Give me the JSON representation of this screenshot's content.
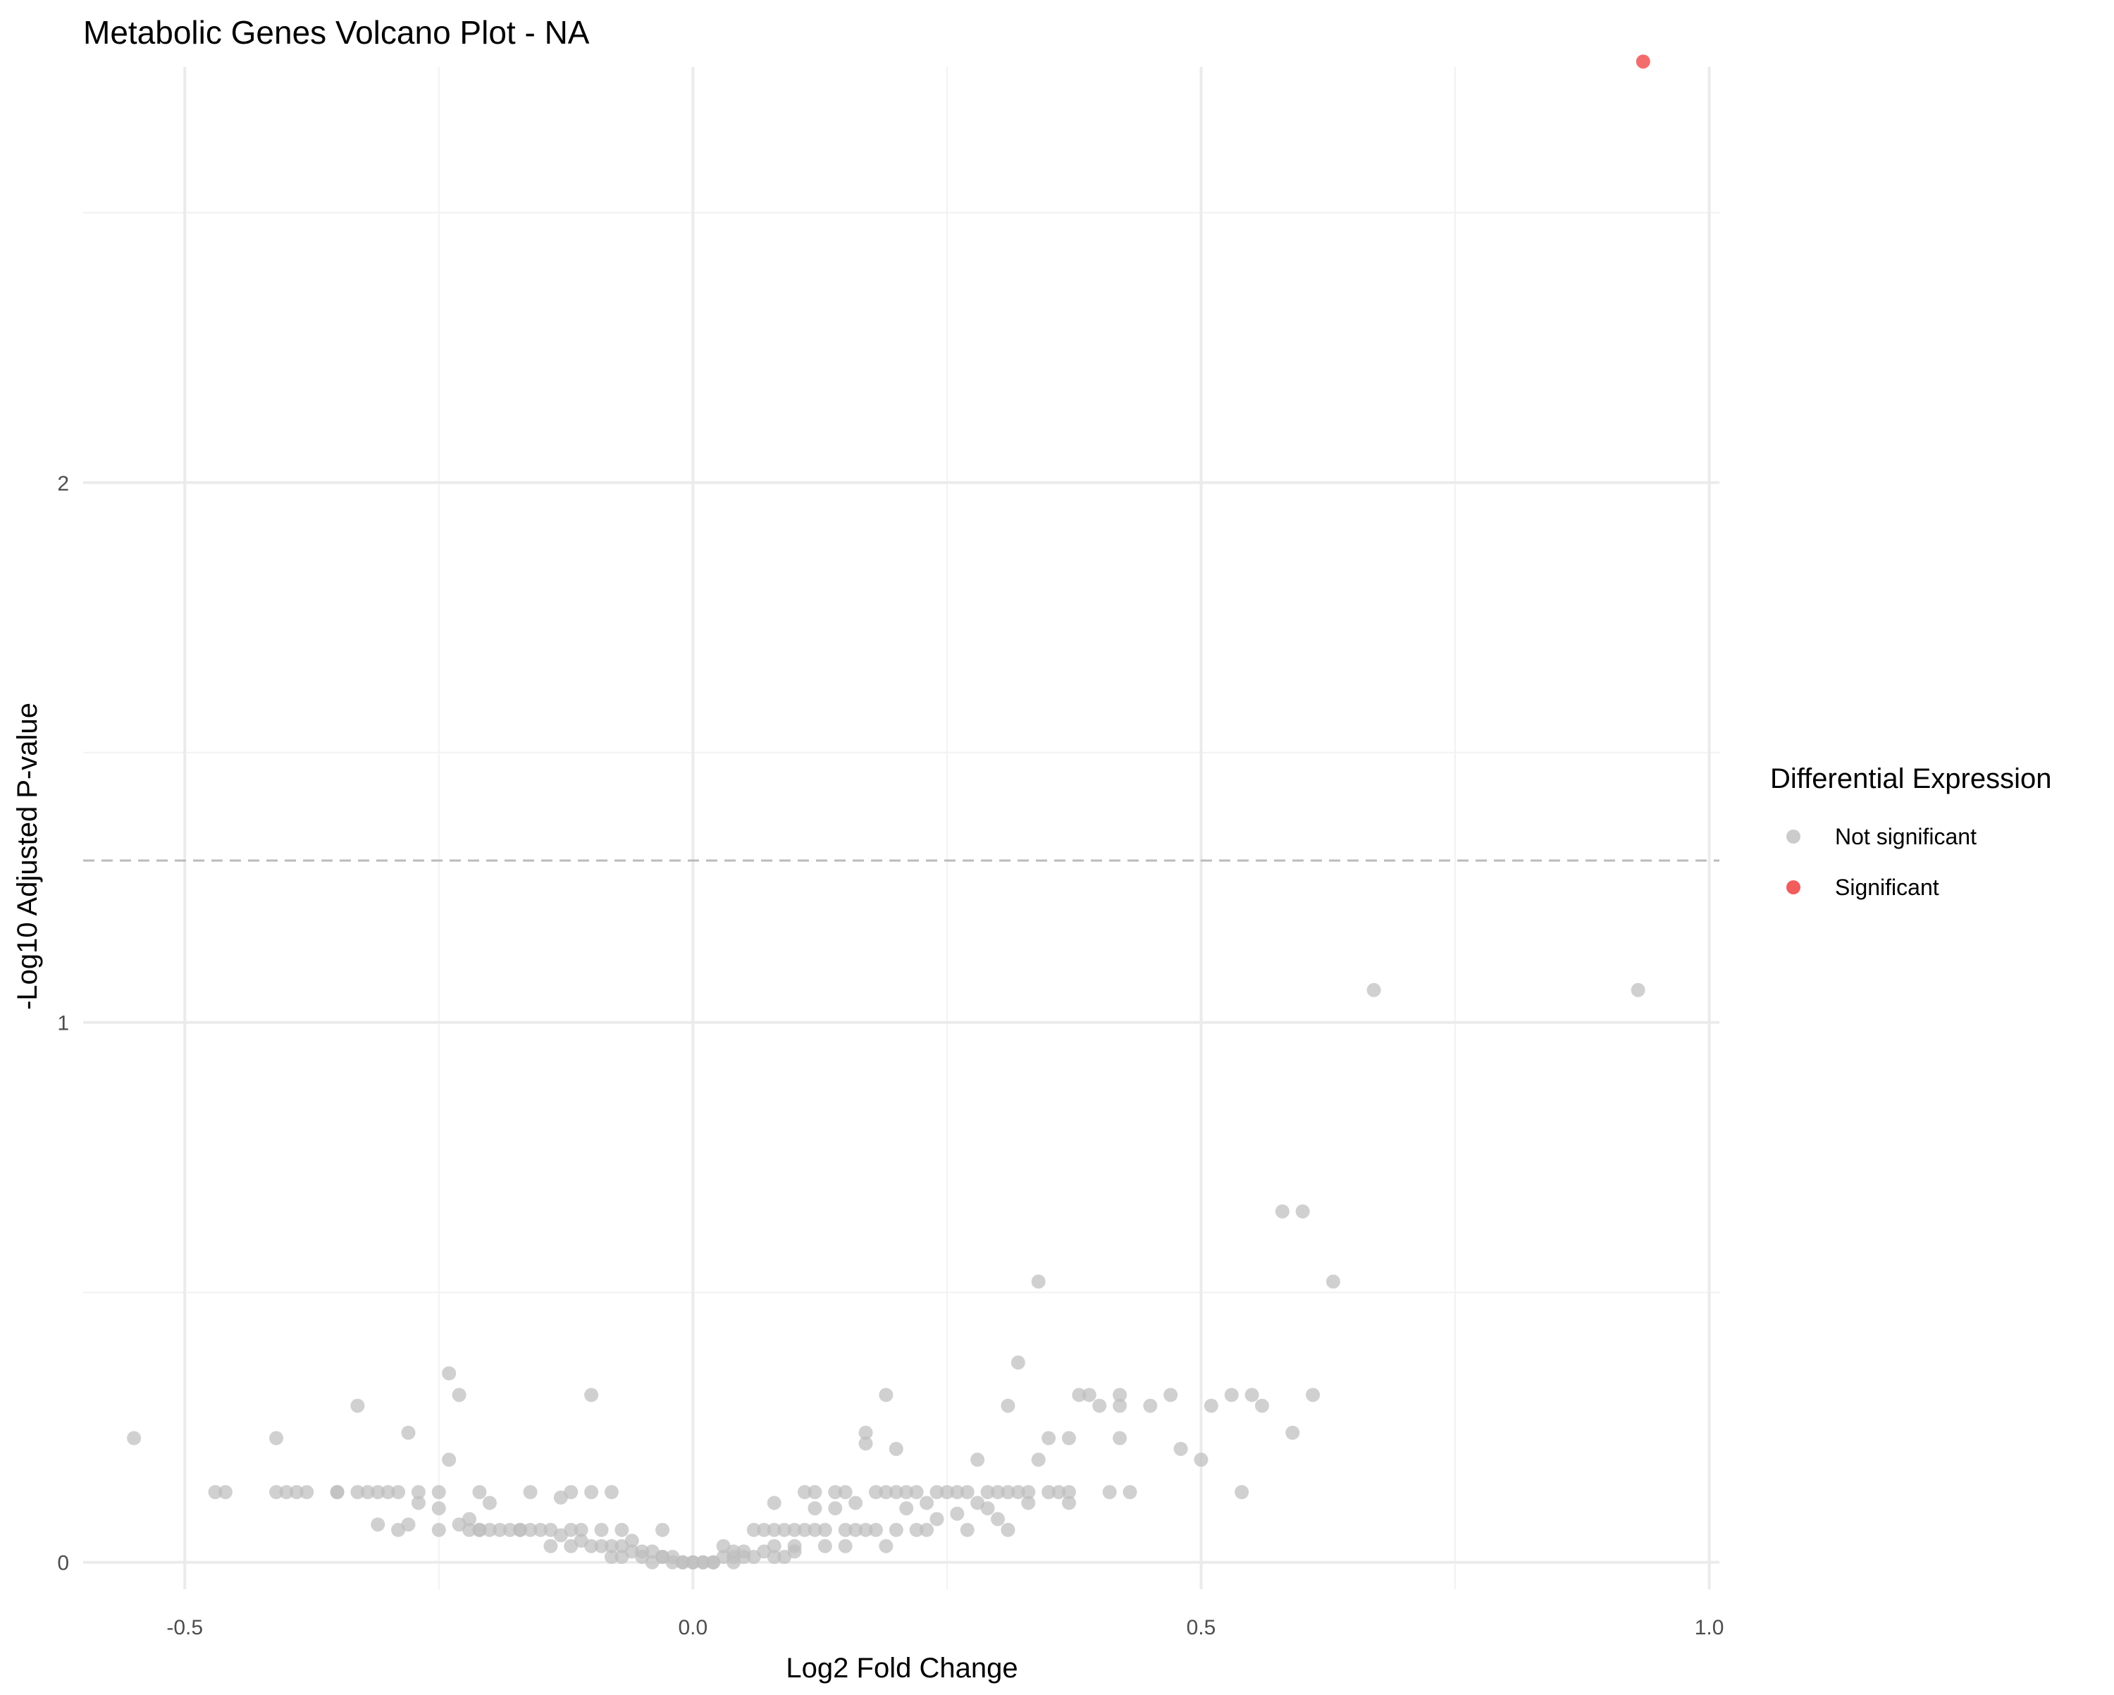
{
  "chart_data": {
    "type": "scatter",
    "title": "Metabolic Genes Volcano Plot - NA",
    "xlabel": "Log2 Fold Change",
    "ylabel": "-Log10 Adjusted P-value",
    "xlim": [
      -0.6,
      1.01
    ],
    "ylim": [
      -0.05,
      2.77
    ],
    "x_ticks": [
      -0.5,
      0.0,
      0.5,
      1.0
    ],
    "x_tick_labels": [
      "-0.5",
      "0.0",
      "0.5",
      "1.0"
    ],
    "y_ticks": [
      0,
      1,
      2
    ],
    "y_tick_labels": [
      "0",
      "1",
      "2"
    ],
    "threshold_line": {
      "y": 1.3,
      "style": "dashed",
      "color": "#bbbbbb"
    },
    "grid": true,
    "legend": {
      "title": "Differential Expression",
      "position": "right",
      "entries": [
        {
          "label": "Not significant",
          "color": "#bebebe"
        },
        {
          "label": "Significant",
          "color": "#ee3333"
        }
      ]
    },
    "series": [
      {
        "name": "Not significant",
        "color": "#bebebe",
        "points": [
          [
            -0.55,
            0.23
          ],
          [
            -0.47,
            0.13
          ],
          [
            -0.46,
            0.13
          ],
          [
            -0.41,
            0.23
          ],
          [
            -0.41,
            0.13
          ],
          [
            -0.4,
            0.13
          ],
          [
            -0.39,
            0.13
          ],
          [
            -0.38,
            0.13
          ],
          [
            -0.35,
            0.13
          ],
          [
            -0.35,
            0.13
          ],
          [
            -0.33,
            0.29
          ],
          [
            -0.33,
            0.13
          ],
          [
            -0.32,
            0.13
          ],
          [
            -0.31,
            0.13
          ],
          [
            -0.31,
            0.07
          ],
          [
            -0.3,
            0.13
          ],
          [
            -0.29,
            0.06
          ],
          [
            -0.29,
            0.13
          ],
          [
            -0.28,
            0.24
          ],
          [
            -0.28,
            0.07
          ],
          [
            -0.27,
            0.13
          ],
          [
            -0.27,
            0.11
          ],
          [
            -0.25,
            0.13
          ],
          [
            -0.25,
            0.06
          ],
          [
            -0.25,
            0.1
          ],
          [
            -0.24,
            0.35
          ],
          [
            -0.24,
            0.19
          ],
          [
            -0.23,
            0.31
          ],
          [
            -0.23,
            0.07
          ],
          [
            -0.22,
            0.06
          ],
          [
            -0.22,
            0.08
          ],
          [
            -0.21,
            0.06
          ],
          [
            -0.21,
            0.06
          ],
          [
            -0.21,
            0.13
          ],
          [
            -0.2,
            0.11
          ],
          [
            -0.2,
            0.06
          ],
          [
            -0.19,
            0.06
          ],
          [
            -0.18,
            0.06
          ],
          [
            -0.17,
            0.06
          ],
          [
            -0.17,
            0.06
          ],
          [
            -0.16,
            0.13
          ],
          [
            -0.16,
            0.06
          ],
          [
            -0.15,
            0.06
          ],
          [
            -0.14,
            0.06
          ],
          [
            -0.14,
            0.03
          ],
          [
            -0.13,
            0.05
          ],
          [
            -0.13,
            0.12
          ],
          [
            -0.12,
            0.13
          ],
          [
            -0.12,
            0.03
          ],
          [
            -0.12,
            0.06
          ],
          [
            -0.11,
            0.04
          ],
          [
            -0.11,
            0.06
          ],
          [
            -0.1,
            0.31
          ],
          [
            -0.1,
            0.13
          ],
          [
            -0.1,
            0.03
          ],
          [
            -0.09,
            0.06
          ],
          [
            -0.09,
            0.03
          ],
          [
            -0.08,
            0.13
          ],
          [
            -0.08,
            0.01
          ],
          [
            -0.08,
            0.03
          ],
          [
            -0.07,
            0.06
          ],
          [
            -0.07,
            0.03
          ],
          [
            -0.07,
            0.01
          ],
          [
            -0.06,
            0.02
          ],
          [
            -0.06,
            0.04
          ],
          [
            -0.05,
            0.02
          ],
          [
            -0.05,
            0.01
          ],
          [
            -0.04,
            0.02
          ],
          [
            -0.04,
            0.0
          ],
          [
            -0.03,
            0.01
          ],
          [
            -0.03,
            0.06
          ],
          [
            -0.03,
            0.01
          ],
          [
            -0.02,
            0.0
          ],
          [
            -0.02,
            0.01
          ],
          [
            -0.01,
            0.0
          ],
          [
            -0.01,
            0.0
          ],
          [
            0.0,
            0.0
          ],
          [
            0.0,
            0.0
          ],
          [
            0.01,
            0.0
          ],
          [
            0.01,
            0.0
          ],
          [
            0.02,
            0.0
          ],
          [
            0.02,
            0.0
          ],
          [
            0.03,
            0.01
          ],
          [
            0.03,
            0.03
          ],
          [
            0.04,
            0.01
          ],
          [
            0.04,
            0.0
          ],
          [
            0.04,
            0.02
          ],
          [
            0.05,
            0.01
          ],
          [
            0.05,
            0.02
          ],
          [
            0.06,
            0.01
          ],
          [
            0.06,
            0.06
          ],
          [
            0.07,
            0.02
          ],
          [
            0.07,
            0.06
          ],
          [
            0.08,
            0.03
          ],
          [
            0.08,
            0.01
          ],
          [
            0.08,
            0.11
          ],
          [
            0.08,
            0.06
          ],
          [
            0.09,
            0.01
          ],
          [
            0.09,
            0.06
          ],
          [
            0.1,
            0.02
          ],
          [
            0.1,
            0.03
          ],
          [
            0.1,
            0.06
          ],
          [
            0.11,
            0.13
          ],
          [
            0.11,
            0.06
          ],
          [
            0.12,
            0.13
          ],
          [
            0.12,
            0.06
          ],
          [
            0.12,
            0.1
          ],
          [
            0.13,
            0.03
          ],
          [
            0.13,
            0.06
          ],
          [
            0.14,
            0.13
          ],
          [
            0.14,
            0.1
          ],
          [
            0.15,
            0.06
          ],
          [
            0.15,
            0.03
          ],
          [
            0.15,
            0.13
          ],
          [
            0.16,
            0.06
          ],
          [
            0.16,
            0.11
          ],
          [
            0.17,
            0.22
          ],
          [
            0.17,
            0.24
          ],
          [
            0.17,
            0.06
          ],
          [
            0.18,
            0.13
          ],
          [
            0.18,
            0.06
          ],
          [
            0.19,
            0.13
          ],
          [
            0.19,
            0.03
          ],
          [
            0.19,
            0.31
          ],
          [
            0.2,
            0.21
          ],
          [
            0.2,
            0.13
          ],
          [
            0.2,
            0.06
          ],
          [
            0.21,
            0.13
          ],
          [
            0.21,
            0.1
          ],
          [
            0.22,
            0.06
          ],
          [
            0.22,
            0.13
          ],
          [
            0.23,
            0.06
          ],
          [
            0.23,
            0.11
          ],
          [
            0.24,
            0.13
          ],
          [
            0.24,
            0.08
          ],
          [
            0.25,
            0.13
          ],
          [
            0.26,
            0.13
          ],
          [
            0.26,
            0.09
          ],
          [
            0.27,
            0.06
          ],
          [
            0.27,
            0.13
          ],
          [
            0.28,
            0.19
          ],
          [
            0.28,
            0.11
          ],
          [
            0.29,
            0.13
          ],
          [
            0.29,
            0.1
          ],
          [
            0.3,
            0.13
          ],
          [
            0.3,
            0.08
          ],
          [
            0.31,
            0.13
          ],
          [
            0.31,
            0.29
          ],
          [
            0.31,
            0.06
          ],
          [
            0.32,
            0.37
          ],
          [
            0.32,
            0.13
          ],
          [
            0.33,
            0.11
          ],
          [
            0.33,
            0.13
          ],
          [
            0.34,
            0.19
          ],
          [
            0.34,
            0.52
          ],
          [
            0.35,
            0.13
          ],
          [
            0.35,
            0.23
          ],
          [
            0.36,
            0.13
          ],
          [
            0.37,
            0.13
          ],
          [
            0.37,
            0.23
          ],
          [
            0.37,
            0.11
          ],
          [
            0.38,
            0.31
          ],
          [
            0.39,
            0.31
          ],
          [
            0.4,
            0.29
          ],
          [
            0.41,
            0.13
          ],
          [
            0.42,
            0.29
          ],
          [
            0.42,
            0.31
          ],
          [
            0.42,
            0.23
          ],
          [
            0.43,
            0.13
          ],
          [
            0.45,
            0.29
          ],
          [
            0.47,
            0.31
          ],
          [
            0.48,
            0.21
          ],
          [
            0.5,
            0.19
          ],
          [
            0.51,
            0.29
          ],
          [
            0.53,
            0.31
          ],
          [
            0.54,
            0.13
          ],
          [
            0.55,
            0.31
          ],
          [
            0.56,
            0.29
          ],
          [
            0.58,
            0.65
          ],
          [
            0.59,
            0.24
          ],
          [
            0.6,
            0.65
          ],
          [
            0.61,
            0.31
          ],
          [
            0.63,
            0.52
          ],
          [
            0.67,
            1.06
          ],
          [
            0.93,
            1.06
          ]
        ]
      },
      {
        "name": "Significant",
        "color": "#ee3333",
        "points": [
          [
            0.935,
            2.78
          ]
        ]
      }
    ]
  }
}
